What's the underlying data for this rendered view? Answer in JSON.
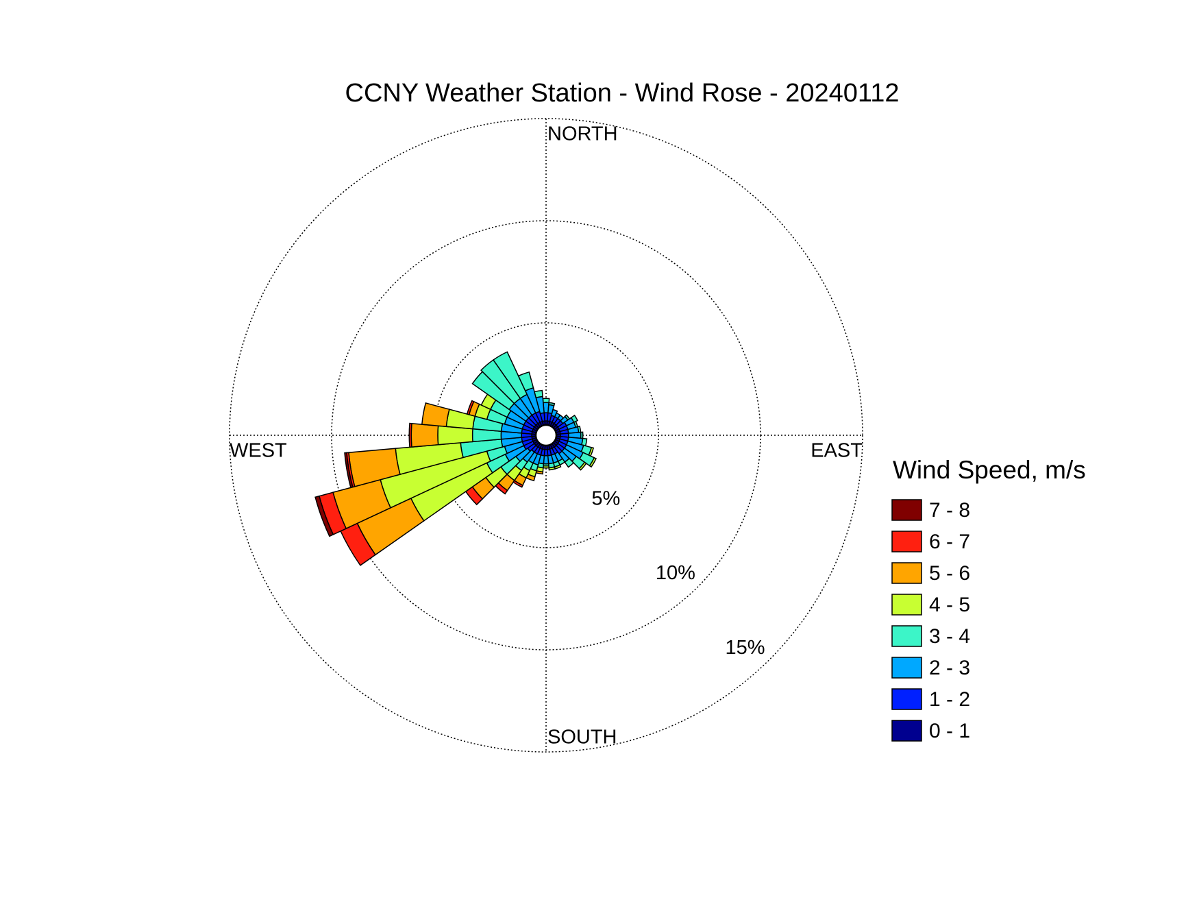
{
  "chart_data": {
    "type": "windrose",
    "title": "CCNY Weather Station - Wind Rose - 20240112",
    "direction_labels": [
      "NORTH",
      "EAST",
      "SOUTH",
      "WEST"
    ],
    "legend_title": "Wind Speed, m/s",
    "categories": [
      null,
      null,
      null,
      null,
      null,
      null,
      null,
      null,
      null,
      null,
      null,
      null,
      null,
      null,
      null,
      null,
      null,
      null,
      null,
      null,
      null,
      null,
      null,
      null,
      null,
      null,
      null,
      null,
      null,
      null,
      null,
      null,
      null,
      null,
      null,
      null
    ],
    "rlim": [
      0,
      15
    ],
    "rticks": [
      {
        "value": 5,
        "label": "5%"
      },
      {
        "value": 10,
        "label": "10%"
      },
      {
        "value": 15,
        "label": "15%"
      }
    ],
    "grid": true,
    "series": [
      {
        "name": "0 - 1",
        "color": "#00008f",
        "values": [
          0.2,
          0.2,
          0.2,
          0.2,
          0.2,
          0.2,
          0.2,
          0.2,
          0.2,
          0.2,
          0.2,
          0.2,
          0.2,
          0.2,
          0.2,
          0.2,
          0.2,
          0.2,
          0.2,
          0.2,
          0.2,
          0.2,
          0.2,
          0.2,
          0.2,
          0.2,
          0.2,
          0.2,
          0.2,
          0.2,
          0.2,
          0.2,
          0.2,
          0.2,
          0.2,
          0.2
        ]
      },
      {
        "name": "1 - 2",
        "color": "#0020ff",
        "values": [
          0.4,
          0.4,
          0.3,
          0.3,
          0.3,
          0.3,
          0.4,
          0.4,
          0.4,
          0.4,
          0.4,
          0.4,
          0.4,
          0.4,
          0.4,
          0.3,
          0.3,
          0.3,
          0.3,
          0.3,
          0.3,
          0.3,
          0.3,
          0.4,
          0.5,
          0.5,
          0.5,
          0.5,
          0.5,
          0.5,
          0.5,
          0.5,
          0.5,
          0.5,
          0.5,
          0.4
        ]
      },
      {
        "name": "2 - 3",
        "color": "#00a8ff",
        "values": [
          0.5,
          0.4,
          0.3,
          0.2,
          0.2,
          0.3,
          0.4,
          0.4,
          0.5,
          0.6,
          0.7,
          0.8,
          0.9,
          0.7,
          0.5,
          0.4,
          0.4,
          0.4,
          0.4,
          0.4,
          0.5,
          0.5,
          0.6,
          0.7,
          1.0,
          0.9,
          1.0,
          1.0,
          1.0,
          0.9,
          0.9,
          1.0,
          1.0,
          1.0,
          1.2,
          0.8
        ]
      },
      {
        "name": "3 - 4",
        "color": "#3cf5c8",
        "values": [
          0.2,
          0.1,
          0,
          0,
          0,
          0.1,
          0.2,
          0.1,
          0.1,
          0.1,
          0.2,
          0.4,
          0.6,
          0.5,
          0.3,
          0.2,
          0.2,
          0.2,
          0.1,
          0.2,
          0.3,
          0.4,
          0.5,
          0.9,
          1.0,
          0.9,
          2.0,
          1.4,
          1.4,
          0.9,
          0.9,
          2.2,
          2.3,
          2.3,
          0.8,
          0.3
        ]
      },
      {
        "name": "4 - 5",
        "color": "#c8ff32",
        "values": [
          0,
          0,
          0,
          0,
          0,
          0,
          0,
          0,
          0,
          0,
          0,
          0.1,
          0.1,
          0.1,
          0,
          0,
          0.1,
          0.1,
          0.1,
          0.2,
          0.3,
          0.4,
          0.6,
          0.9,
          4.1,
          5.4,
          3.2,
          1.7,
          1.3,
          0.6,
          0.5,
          0,
          0,
          0,
          0,
          0
        ]
      },
      {
        "name": "5 - 6",
        "color": "#ffa500",
        "values": [
          0,
          0,
          0,
          0,
          0,
          0,
          0,
          0,
          0,
          0,
          0,
          0,
          0,
          0,
          0,
          0,
          0,
          0,
          0,
          0.1,
          0.2,
          0.4,
          0.6,
          0.8,
          2.9,
          2.4,
          2.3,
          1.3,
          1.2,
          0.3,
          0,
          0,
          0,
          0,
          0,
          0
        ]
      },
      {
        "name": "6 - 7",
        "color": "#ff2010",
        "values": [
          0,
          0,
          0,
          0,
          0,
          0,
          0,
          0,
          0,
          0,
          0,
          0,
          0,
          0,
          0,
          0,
          0,
          0,
          0,
          0,
          0,
          0.1,
          0.2,
          0.4,
          0.9,
          0.7,
          0.1,
          0.1,
          0,
          0.1,
          0,
          0,
          0,
          0,
          0,
          0
        ]
      },
      {
        "name": "7 - 8",
        "color": "#800000",
        "values": [
          0,
          0,
          0,
          0,
          0,
          0,
          0,
          0,
          0,
          0,
          0,
          0,
          0,
          0,
          0,
          0,
          0,
          0,
          0,
          0,
          0,
          0,
          0,
          0,
          0,
          0.2,
          0.1,
          0,
          0,
          0,
          0,
          0,
          0,
          0,
          0,
          0
        ]
      }
    ]
  }
}
